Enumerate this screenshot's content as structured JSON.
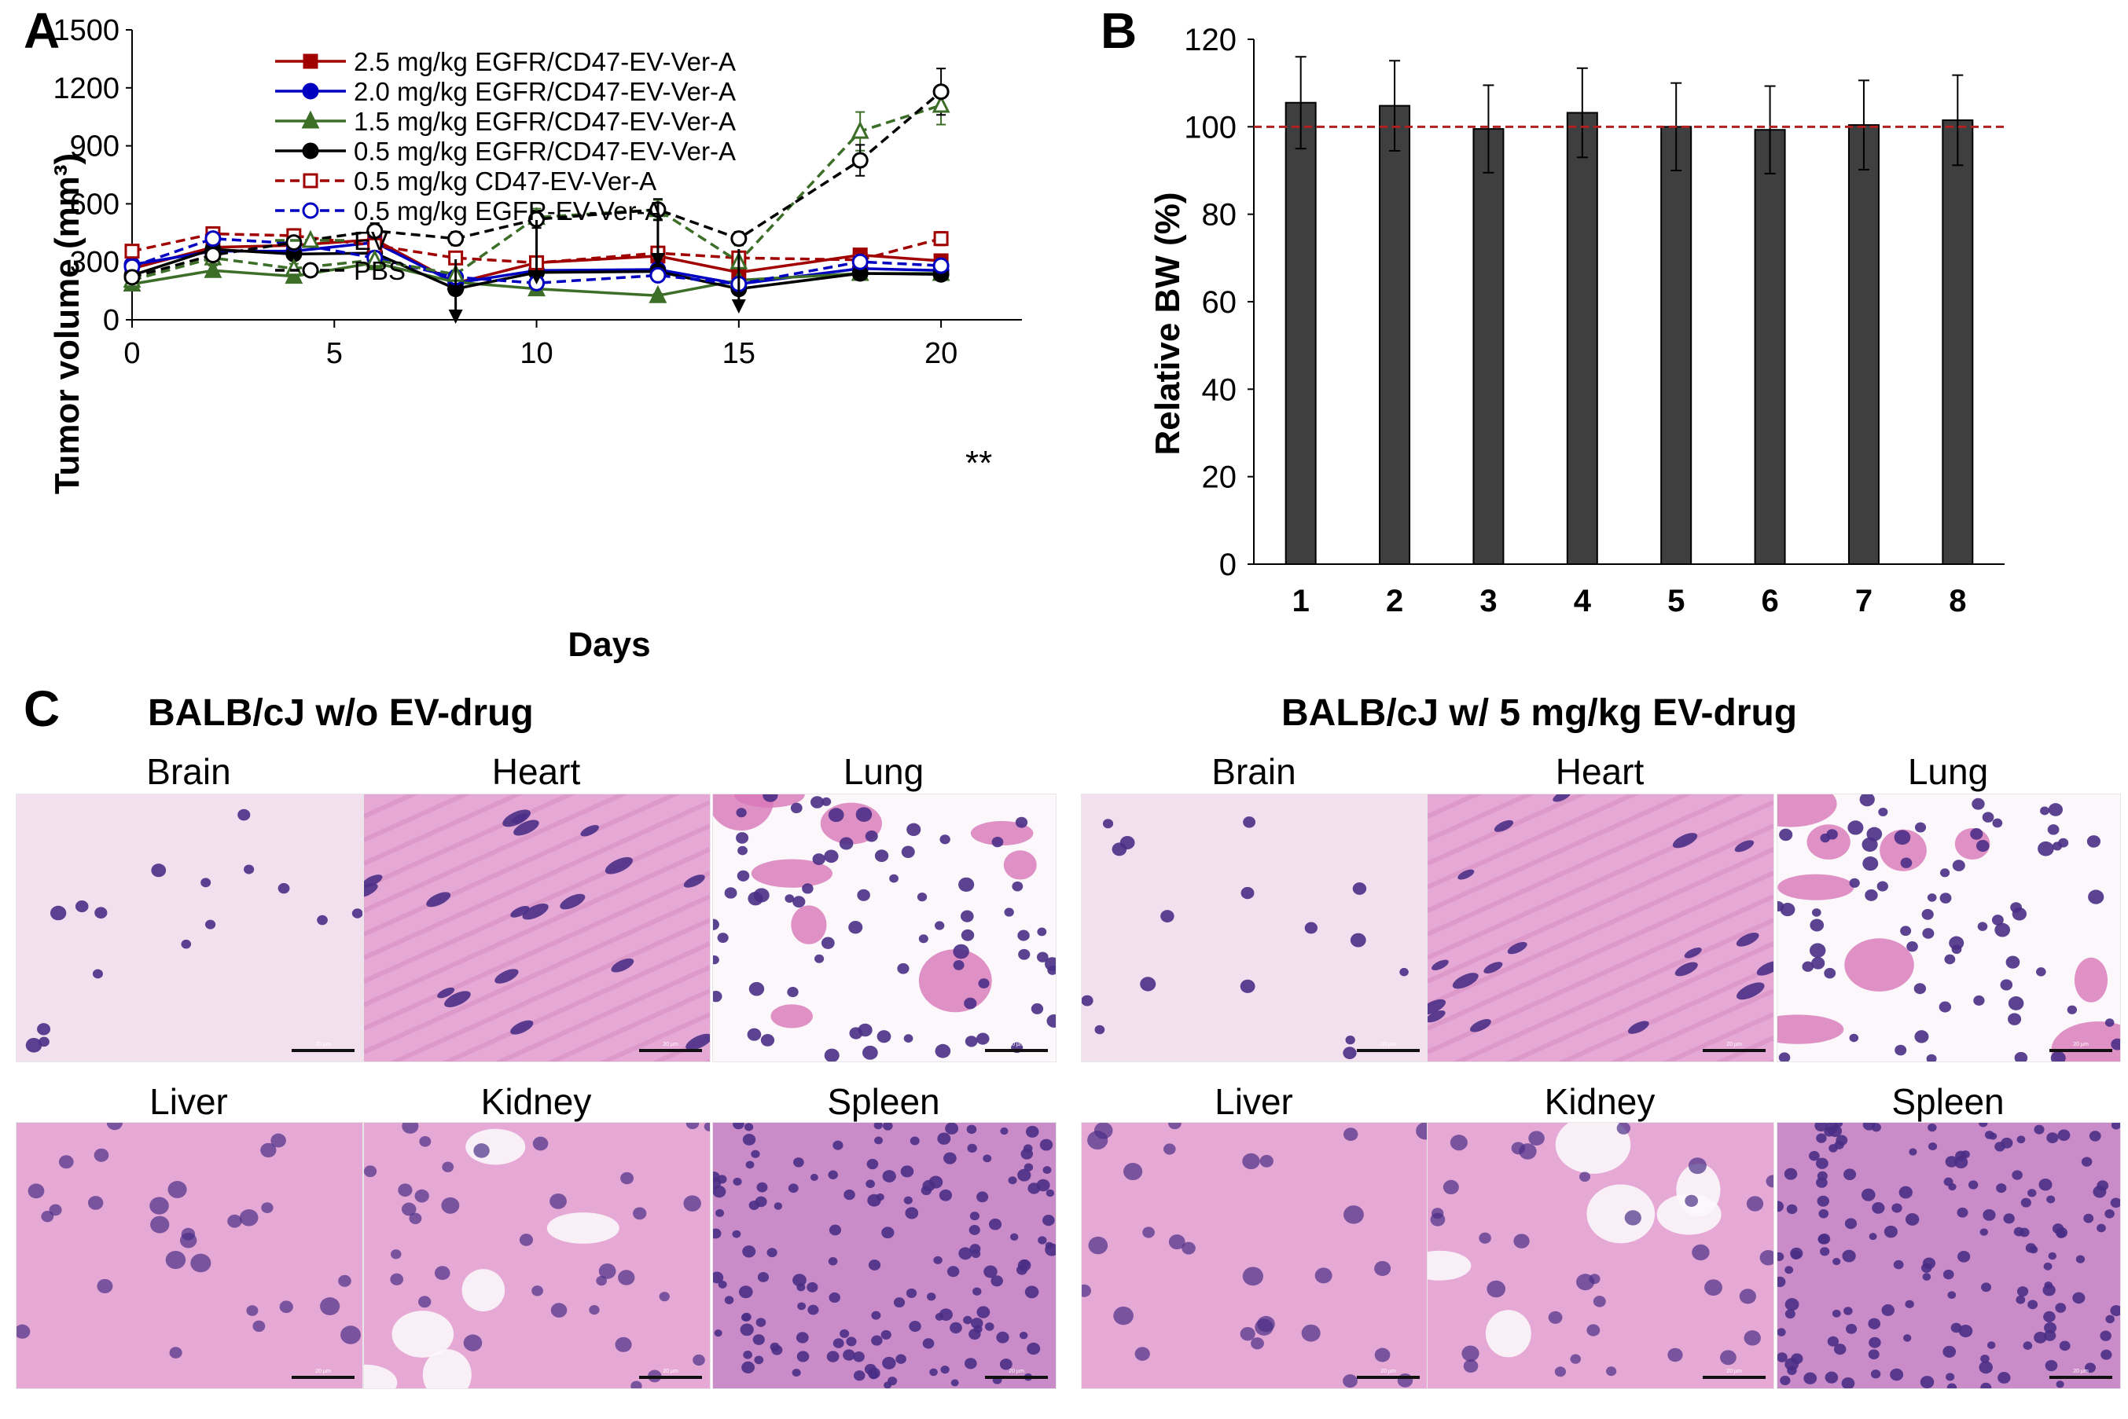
{
  "panels": {
    "a": "A",
    "b": "B",
    "c": "C"
  },
  "chart_data": [
    {
      "type": "line",
      "xlabel": "Days",
      "ylabel": "Tumor volume (mm³)",
      "xlim": [
        0,
        22
      ],
      "ylim": [
        0,
        1500
      ],
      "xticks": [
        0,
        5,
        10,
        15,
        20
      ],
      "yticks": [
        0,
        300,
        600,
        900,
        1200,
        1500
      ],
      "x": [
        0,
        2,
        4,
        6,
        8,
        10,
        13,
        15,
        18,
        20
      ],
      "legend_position": "top-left",
      "arrows_at_days": [
        8,
        10,
        13,
        15
      ],
      "annotation": "**",
      "series": [
        {
          "name": "2.5 mg/kg EGFR/CD47-EV-Ver-A",
          "color": "#a00000",
          "style": "solid",
          "marker": "square-filled",
          "values": [
            265,
            375,
            385,
            415,
            190,
            295,
            330,
            245,
            335,
            305
          ],
          "errors": [
            20,
            25,
            25,
            30,
            20,
            25,
            30,
            20,
            25,
            25
          ]
        },
        {
          "name": "2.0 mg/kg EGFR/CD47-EV-Ver-A",
          "color": "#0000c0",
          "style": "solid",
          "marker": "circle-filled",
          "values": [
            285,
            355,
            355,
            400,
            190,
            255,
            260,
            185,
            265,
            255
          ],
          "errors": [
            20,
            25,
            25,
            25,
            20,
            20,
            20,
            20,
            20,
            20
          ]
        },
        {
          "name": "1.5 mg/kg EGFR/CD47-EV-Ver-A",
          "color": "#3c6e28",
          "style": "solid",
          "marker": "triangle-filled",
          "values": [
            185,
            255,
            225,
            295,
            195,
            160,
            125,
            205,
            240,
            240
          ],
          "errors": [
            15,
            25,
            20,
            20,
            20,
            15,
            10,
            15,
            20,
            20
          ]
        },
        {
          "name": "0.5 mg/kg EGFR/CD47-EV-Ver-A",
          "color": "#000000",
          "style": "solid",
          "marker": "circle-filled",
          "values": [
            230,
            365,
            340,
            345,
            160,
            245,
            250,
            160,
            240,
            235
          ],
          "errors": [
            20,
            25,
            25,
            25,
            15,
            20,
            20,
            15,
            20,
            20
          ]
        },
        {
          "name": "0.5 mg/kg CD47-EV-Ver-A",
          "color": "#a00000",
          "style": "dashed",
          "marker": "square-open",
          "values": [
            355,
            445,
            435,
            385,
            320,
            295,
            345,
            320,
            310,
            420
          ],
          "errors": [
            20,
            35,
            35,
            30,
            25,
            25,
            30,
            25,
            25,
            35
          ]
        },
        {
          "name": "0.5 mg/kg EGFR-EV-Ver-A",
          "color": "#0000c0",
          "style": "dashed",
          "marker": "circle-open",
          "values": [
            275,
            420,
            395,
            320,
            220,
            190,
            230,
            185,
            300,
            280
          ],
          "errors": [
            20,
            30,
            30,
            25,
            20,
            20,
            20,
            20,
            25,
            25
          ]
        },
        {
          "name": "EV",
          "color": "#3c6e28",
          "style": "dashed",
          "marker": "triangle-open",
          "values": [
            205,
            320,
            265,
            310,
            235,
            530,
            570,
            300,
            975,
            1110
          ],
          "errors": [
            15,
            25,
            25,
            25,
            20,
            45,
            50,
            25,
            100,
            100
          ]
        },
        {
          "name": "PBS",
          "color": "#000000",
          "style": "dashed",
          "marker": "circle-open",
          "values": [
            220,
            335,
            400,
            460,
            420,
            520,
            570,
            420,
            825,
            1180
          ],
          "errors": [
            20,
            25,
            35,
            40,
            35,
            45,
            55,
            35,
            80,
            120
          ]
        }
      ]
    },
    {
      "type": "bar",
      "xlabel": "",
      "ylabel": "Relative BW (%)",
      "ylim": [
        0,
        120
      ],
      "yticks": [
        0,
        20,
        40,
        60,
        80,
        100,
        120
      ],
      "categories": [
        "1",
        "2",
        "3",
        "4",
        "5",
        "6",
        "7",
        "8"
      ],
      "values": [
        105.5,
        104.8,
        99.5,
        103.2,
        100,
        99.3,
        100.4,
        101.5
      ],
      "errors": [
        10.5,
        10.3,
        10,
        10.2,
        10,
        10,
        10.2,
        10.3
      ],
      "bar_color": "#3f3f3f",
      "reference_line": 100,
      "reference_line_color": "#b41e1e"
    }
  ],
  "histology": {
    "left_title": "BALB/cJ w/o EV-drug",
    "right_title": "BALB/cJ w/ 5 mg/kg EV-drug",
    "organs_top": [
      "Brain",
      "Heart",
      "Lung"
    ],
    "organs_bottom": [
      "Liver",
      "Kidney",
      "Spleen"
    ],
    "scale_text": "20 µm",
    "colors": {
      "pink": "#e6a9d6",
      "light": "#f3e0ef",
      "nucleus": "#4a2f86",
      "eosin": "#d877b8",
      "white": "#fbf7fb"
    }
  }
}
